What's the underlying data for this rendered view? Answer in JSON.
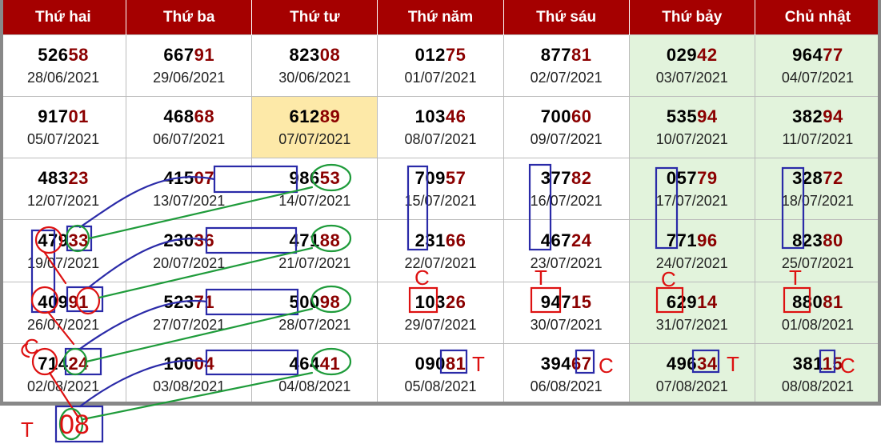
{
  "days": [
    "Thứ hai",
    "Thứ ba",
    "Thứ tư",
    "Thứ năm",
    "Thứ sáu",
    "Thứ bảy",
    "Chủ nhật"
  ],
  "weeks": [
    [
      {
        "n": "52658",
        "d": "28/06/2021"
      },
      {
        "n": "66791",
        "d": "29/06/2021"
      },
      {
        "n": "82308",
        "d": "30/06/2021"
      },
      {
        "n": "01275",
        "d": "01/07/2021"
      },
      {
        "n": "87781",
        "d": "02/07/2021"
      },
      {
        "n": "02942",
        "d": "03/07/2021"
      },
      {
        "n": "96477",
        "d": "04/07/2021"
      }
    ],
    [
      {
        "n": "91701",
        "d": "05/07/2021"
      },
      {
        "n": "46868",
        "d": "06/07/2021"
      },
      {
        "n": "61289",
        "d": "07/07/2021"
      },
      {
        "n": "10346",
        "d": "08/07/2021"
      },
      {
        "n": "70060",
        "d": "09/07/2021"
      },
      {
        "n": "53594",
        "d": "10/07/2021"
      },
      {
        "n": "38294",
        "d": "11/07/2021"
      }
    ],
    [
      {
        "n": "48323",
        "d": "12/07/2021"
      },
      {
        "n": "41507",
        "d": "13/07/2021"
      },
      {
        "n": "98653",
        "d": "14/07/2021"
      },
      {
        "n": "70957",
        "d": "15/07/2021"
      },
      {
        "n": "37782",
        "d": "16/07/2021"
      },
      {
        "n": "05779",
        "d": "17/07/2021"
      },
      {
        "n": "32872",
        "d": "18/07/2021"
      }
    ],
    [
      {
        "n": "47933",
        "d": "19/07/2021"
      },
      {
        "n": "23036",
        "d": "20/07/2021"
      },
      {
        "n": "47188",
        "d": "21/07/2021"
      },
      {
        "n": "23166",
        "d": "22/07/2021"
      },
      {
        "n": "46724",
        "d": "23/07/2021"
      },
      {
        "n": "77196",
        "d": "24/07/2021"
      },
      {
        "n": "82380",
        "d": "25/07/2021"
      }
    ],
    [
      {
        "n": "40991",
        "d": "26/07/2021"
      },
      {
        "n": "52371",
        "d": "27/07/2021"
      },
      {
        "n": "50098",
        "d": "28/07/2021"
      },
      {
        "n": "10326",
        "d": "29/07/2021"
      },
      {
        "n": "94715",
        "d": "30/07/2021"
      },
      {
        "n": "62914",
        "d": "31/07/2021"
      },
      {
        "n": "88081",
        "d": "01/08/2021"
      }
    ],
    [
      {
        "n": "71424",
        "d": "02/08/2021"
      },
      {
        "n": "10004",
        "d": "03/08/2021"
      },
      {
        "n": "46441",
        "d": "04/08/2021"
      },
      {
        "n": "09081",
        "d": "05/08/2021"
      },
      {
        "n": "39467",
        "d": "06/08/2021"
      },
      {
        "n": "49634",
        "d": "07/08/2021"
      },
      {
        "n": "38115",
        "d": "08/08/2021"
      }
    ]
  ],
  "highlight": {
    "week": 1,
    "day": 2
  },
  "weekend_days": [
    5,
    6
  ],
  "annotations": {
    "labels": [
      "C",
      "T",
      "C",
      "T",
      "T",
      "C",
      "T",
      "C",
      "C",
      "T"
    ],
    "bottom_result": "08"
  },
  "colors": {
    "header": "#a50000",
    "tail": "#8b0000",
    "weekend": "#e2f3dc",
    "highlight": "#fde9a8",
    "box": "#2a2aa8",
    "circle": "#1e9b3a",
    "red": "#dd1111"
  }
}
